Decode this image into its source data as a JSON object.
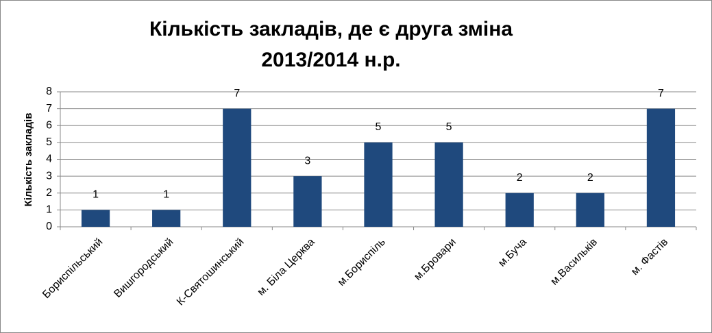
{
  "chart_data": {
    "type": "bar",
    "title": [
      "Кількість закладів, де є друга зміна",
      "2013/2014 н.р."
    ],
    "y_label": "Кількість закладів",
    "categories": [
      "Бориспільський",
      "Вишгородський",
      "К-Святошинський",
      "м. Біла Церква",
      "м.Бориспіль",
      "м.Бровари",
      "м.Буча",
      "м.Васильків",
      "м. Фастів"
    ],
    "values": [
      1,
      1,
      7,
      3,
      5,
      5,
      2,
      2,
      7
    ],
    "color": "#1f497d",
    "ylim": [
      0,
      8
    ],
    "yticks": [
      0,
      1,
      2,
      3,
      4,
      5,
      6,
      7,
      8
    ],
    "grid": true,
    "data_labels": true
  }
}
